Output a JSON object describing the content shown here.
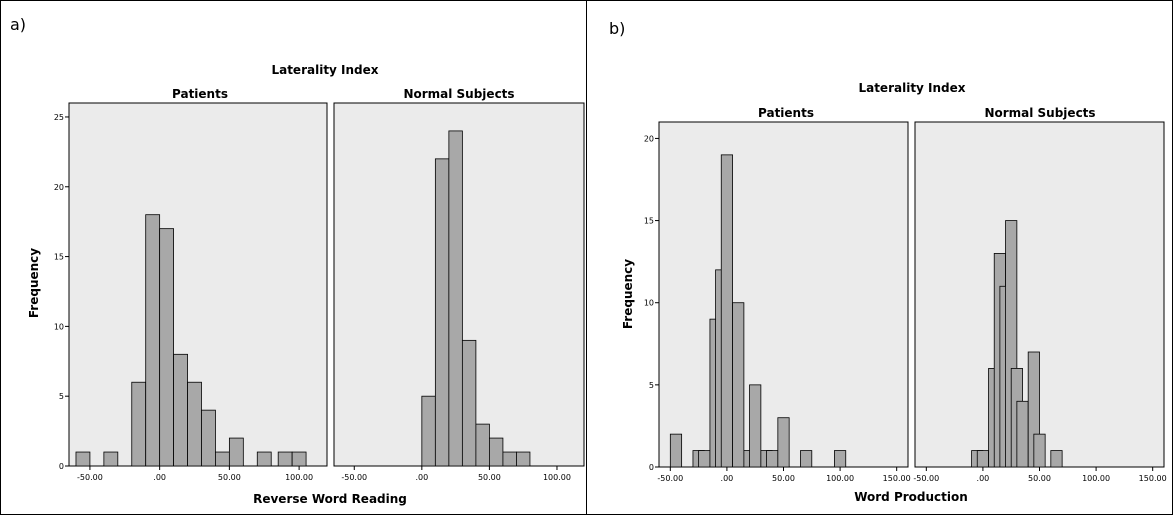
{
  "figure": {
    "panel_a_letter": "a)",
    "panel_b_letter": "b)"
  },
  "chart_data": [
    {
      "type": "bar",
      "panel": "a)",
      "title": "Laterality Index",
      "xlabel": "Reverse Word Reading",
      "ylabel": "Frequency",
      "ylim": [
        0,
        26
      ],
      "yticks": [
        0,
        5,
        10,
        15,
        20,
        25
      ],
      "xlim": [
        -65,
        120
      ],
      "xticks": [
        -50,
        0,
        50,
        100
      ],
      "xtick_labels": [
        "-50.00",
        ".00",
        "50.00",
        "100.00"
      ],
      "bin_width": 10,
      "facets": [
        {
          "name": "Patients",
          "bins": [
            {
              "x": -60,
              "value": 1
            },
            {
              "x": -40,
              "value": 1
            },
            {
              "x": -20,
              "value": 6
            },
            {
              "x": -10,
              "value": 18
            },
            {
              "x": 0,
              "value": 17
            },
            {
              "x": 10,
              "value": 8
            },
            {
              "x": 20,
              "value": 6
            },
            {
              "x": 30,
              "value": 4
            },
            {
              "x": 40,
              "value": 1
            },
            {
              "x": 50,
              "value": 2
            },
            {
              "x": 70,
              "value": 1
            },
            {
              "x": 85,
              "value": 1
            },
            {
              "x": 95,
              "value": 1
            }
          ]
        },
        {
          "name": "Normal Subjects",
          "bins": [
            {
              "x": 0,
              "value": 5
            },
            {
              "x": 10,
              "value": 22
            },
            {
              "x": 20,
              "value": 24
            },
            {
              "x": 30,
              "value": 9
            },
            {
              "x": 40,
              "value": 3
            },
            {
              "x": 50,
              "value": 2
            },
            {
              "x": 60,
              "value": 1
            },
            {
              "x": 70,
              "value": 1
            }
          ]
        }
      ]
    },
    {
      "type": "bar",
      "panel": "b)",
      "title": "Laterality Index",
      "xlabel": "Word Production",
      "ylabel": "Frequency",
      "ylim": [
        0,
        21
      ],
      "yticks": [
        0,
        5,
        10,
        15,
        20
      ],
      "xlim": [
        -60,
        160
      ],
      "xticks": [
        -50,
        0,
        50,
        100,
        150
      ],
      "xtick_labels": [
        "-50.00",
        ".00",
        "50.00",
        "100.00",
        "150.00"
      ],
      "bin_width": 10,
      "facets": [
        {
          "name": "Patients",
          "bins": [
            {
              "x": -50,
              "value": 2
            },
            {
              "x": -30,
              "value": 1
            },
            {
              "x": -25,
              "value": 1
            },
            {
              "x": -15,
              "value": 9
            },
            {
              "x": -10,
              "value": 12
            },
            {
              "x": -5,
              "value": 19
            },
            {
              "x": 5,
              "value": 10
            },
            {
              "x": 15,
              "value": 1
            },
            {
              "x": 20,
              "value": 5
            },
            {
              "x": 30,
              "value": 1
            },
            {
              "x": 35,
              "value": 1
            },
            {
              "x": 45,
              "value": 3
            },
            {
              "x": 65,
              "value": 1
            },
            {
              "x": 95,
              "value": 1
            }
          ]
        },
        {
          "name": "Normal Subjects",
          "bins": [
            {
              "x": -10,
              "value": 1
            },
            {
              "x": -5,
              "value": 1
            },
            {
              "x": 5,
              "value": 6
            },
            {
              "x": 10,
              "value": 13
            },
            {
              "x": 15,
              "value": 11
            },
            {
              "x": 20,
              "value": 15
            },
            {
              "x": 25,
              "value": 6
            },
            {
              "x": 30,
              "value": 4
            },
            {
              "x": 40,
              "value": 7
            },
            {
              "x": 45,
              "value": 2
            },
            {
              "x": 60,
              "value": 1
            }
          ]
        }
      ]
    }
  ]
}
